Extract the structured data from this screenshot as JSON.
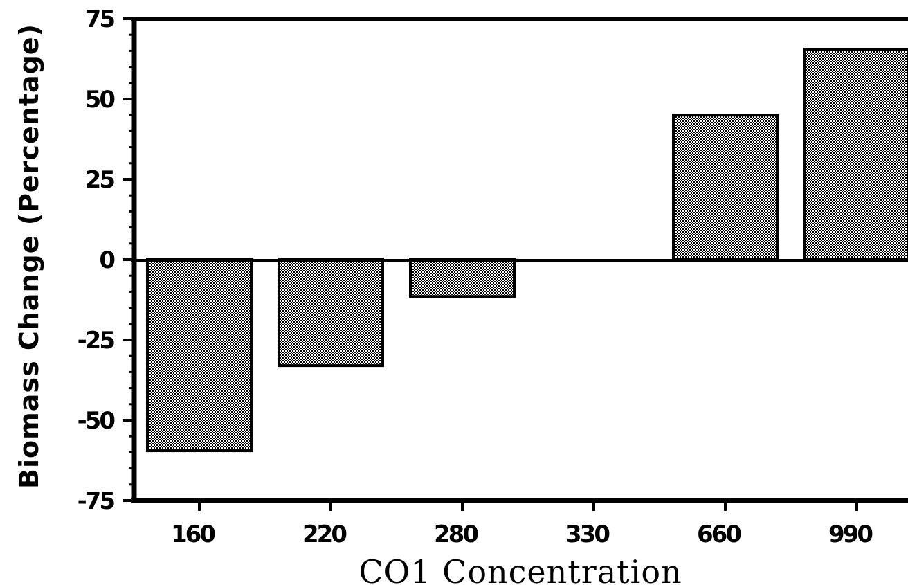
{
  "chart_data": {
    "type": "bar",
    "title": "",
    "xlabel": "CO1 Concentration",
    "ylabel": "Biomass Change (Percentage)",
    "categories": [
      "160",
      "220",
      "280",
      "330",
      "660",
      "990"
    ],
    "values": [
      -59.5,
      -33,
      -11.5,
      0,
      45,
      65.5
    ],
    "ylim": [
      -75,
      75
    ],
    "yticks": [
      75,
      50,
      25,
      0,
      -25,
      -50,
      -75
    ],
    "ytick_labels": [
      "75",
      "50",
      "25",
      "0",
      "-25",
      "-50",
      "-75"
    ],
    "grid": false,
    "legend": "none",
    "bar_fill": "checkered black/white",
    "colors": {
      "bar_dark": "#000000",
      "bar_light": "#ffffff",
      "axis": "#000000"
    }
  }
}
